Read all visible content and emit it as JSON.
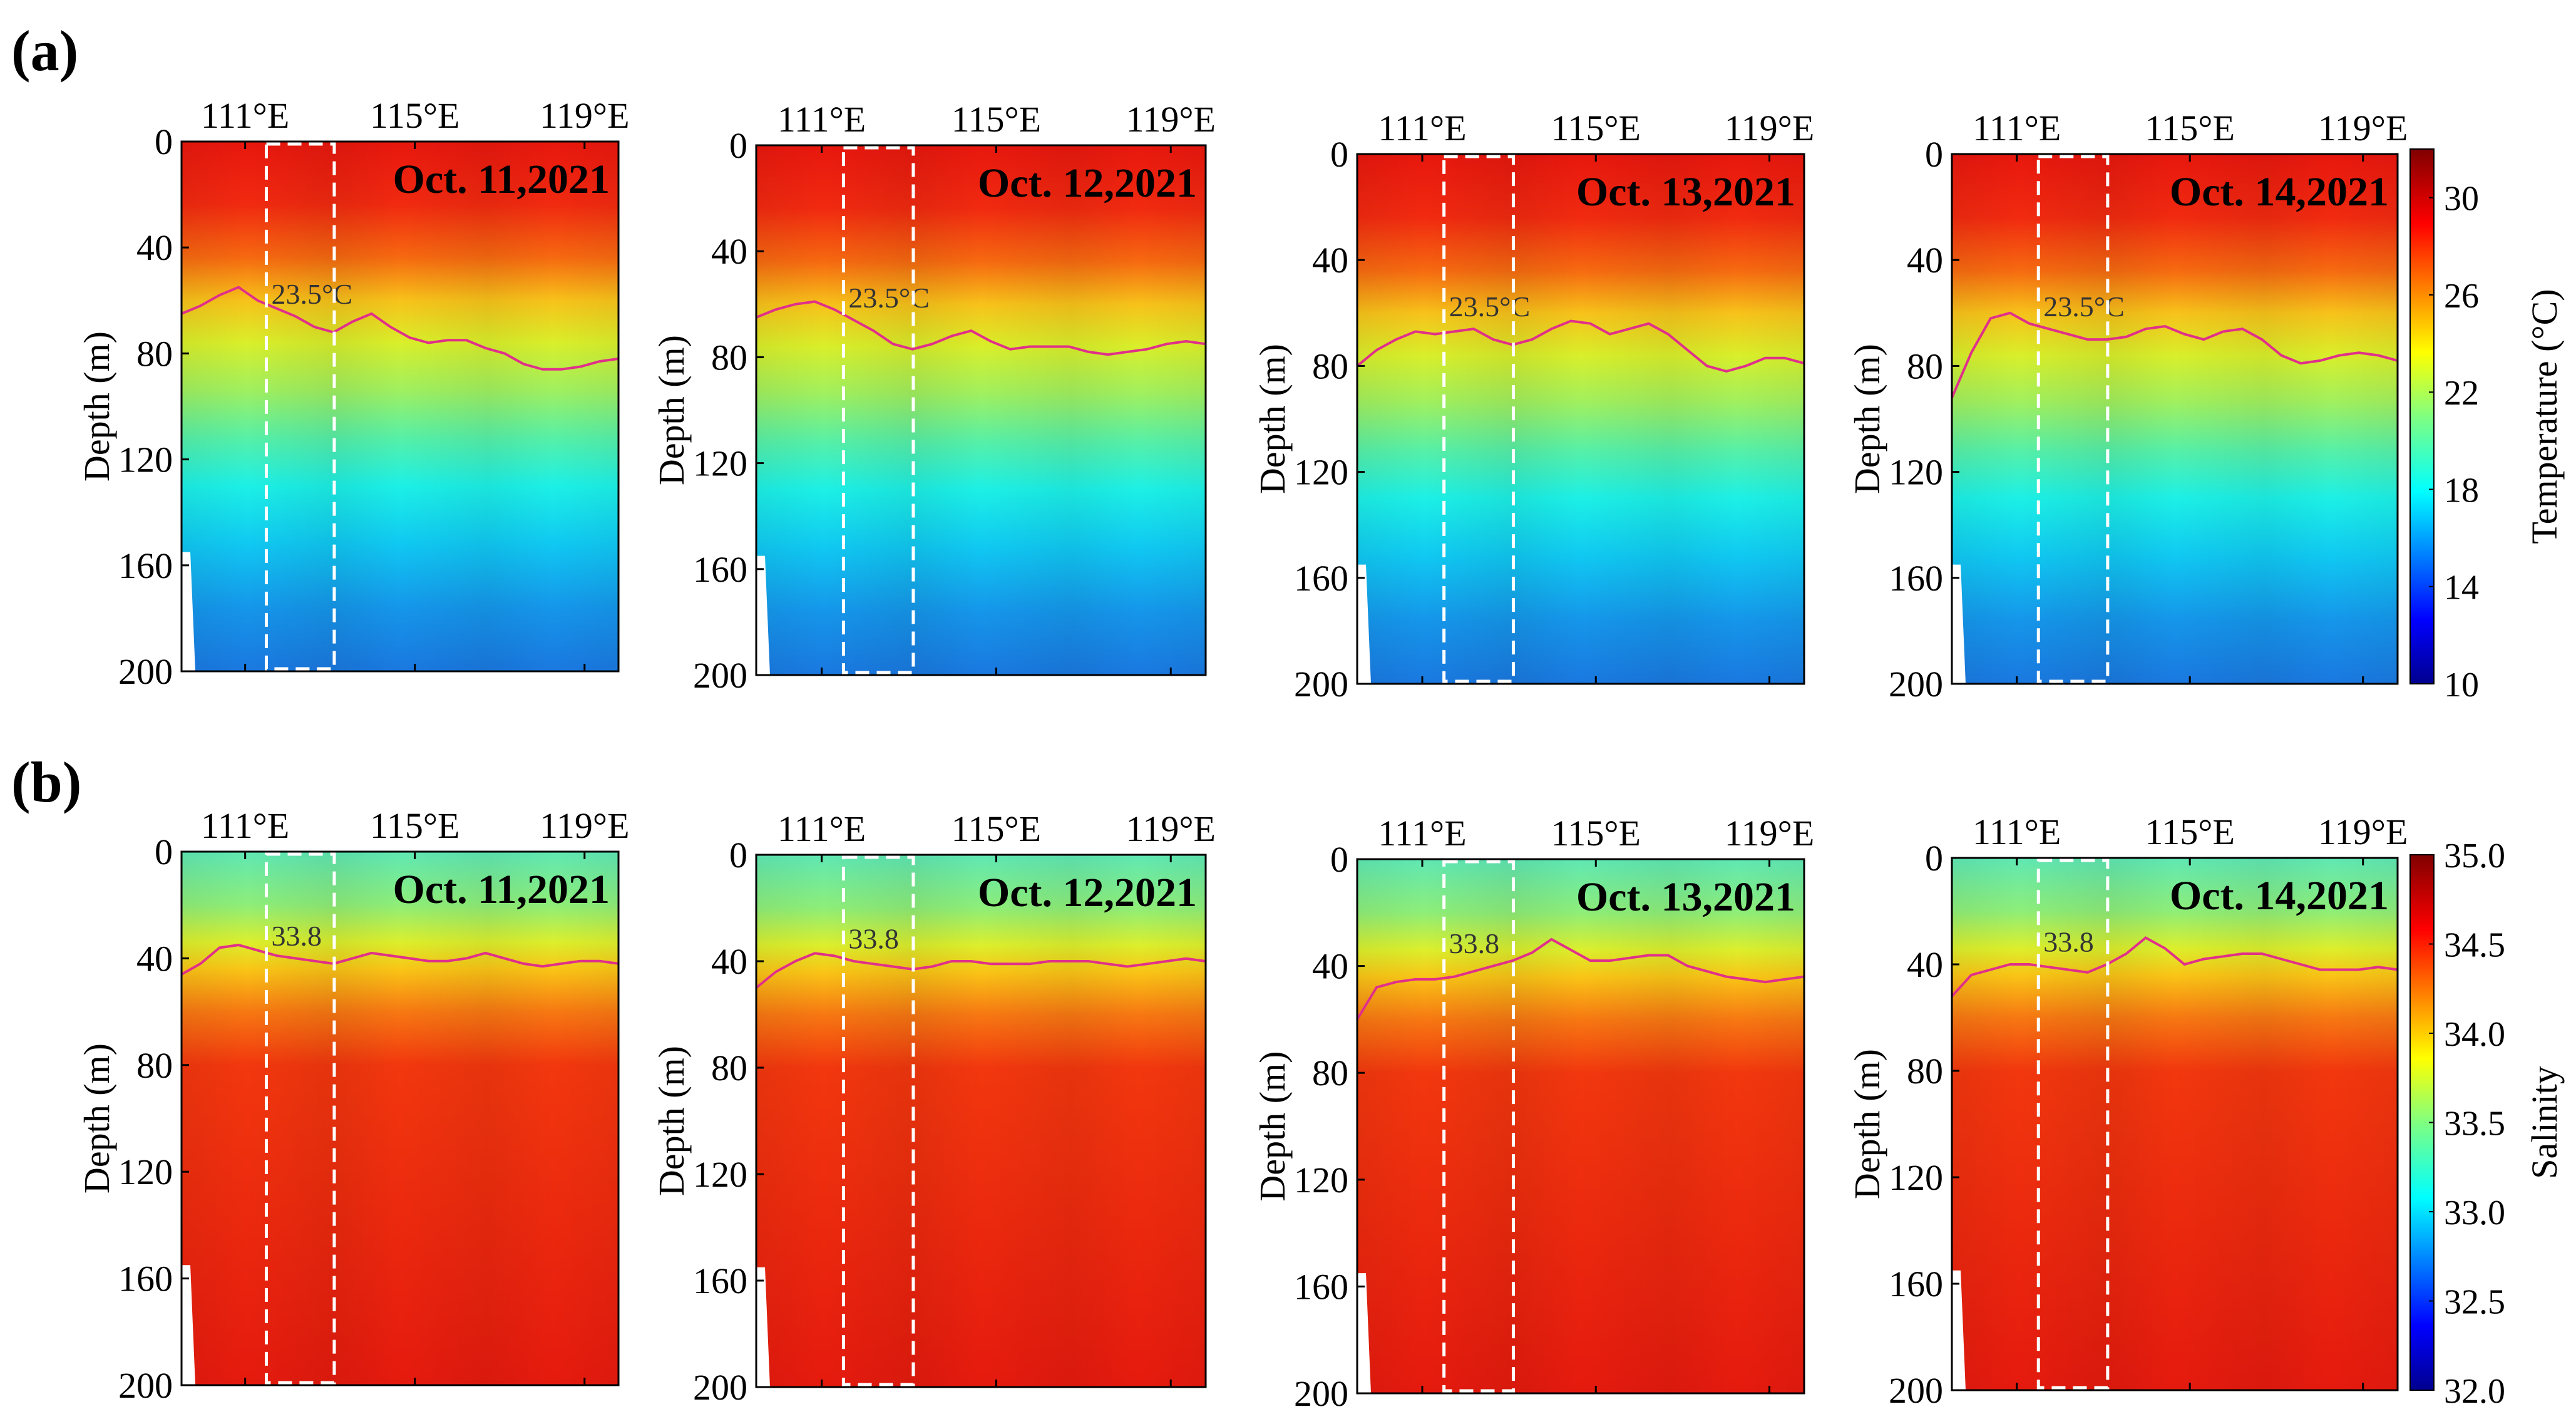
{
  "panel_labels": {
    "a": "(a)",
    "b": "(b)"
  },
  "chart_data": [
    {
      "type": "heatmap",
      "row": "a",
      "variable": "Temperature",
      "colorbar": {
        "title": "Temperature (°C)",
        "ticks": [
          "10",
          "14",
          "18",
          "22",
          "26",
          "30"
        ],
        "range": [
          10,
          32
        ]
      },
      "ylabel": "Depth (m)",
      "yticks": [
        "0",
        "40",
        "80",
        "120",
        "160",
        "200"
      ],
      "ylim": [
        0,
        200
      ],
      "xticks": [
        "111°E",
        "115°E",
        "119°E"
      ],
      "xlim": [
        109.5,
        119.8
      ],
      "box_lon": [
        111.5,
        113.1
      ],
      "contour_value": "23.5",
      "panels": [
        {
          "date": "Oct. 11,2021",
          "contour_label": "23.5°C",
          "contour_depth": [
            65,
            62,
            58,
            55,
            60,
            63,
            66,
            70,
            72,
            68,
            65,
            70,
            74,
            76,
            75,
            75,
            78,
            80,
            84,
            86,
            86,
            85,
            83,
            82
          ]
        },
        {
          "date": "Oct. 12,2021",
          "contour_label": "23.5°C",
          "contour_depth": [
            65,
            62,
            60,
            59,
            62,
            66,
            70,
            75,
            77,
            75,
            72,
            70,
            74,
            77,
            76,
            76,
            76,
            78,
            79,
            78,
            77,
            75,
            74,
            75
          ]
        },
        {
          "date": "Oct. 13,2021",
          "contour_label": "23.5°C",
          "contour_depth": [
            80,
            74,
            70,
            67,
            68,
            67,
            66,
            70,
            72,
            70,
            66,
            63,
            64,
            68,
            66,
            64,
            68,
            74,
            80,
            82,
            80,
            77,
            77,
            79
          ]
        },
        {
          "date": "Oct. 14,2021",
          "contour_label": "23.5°C",
          "contour_depth": [
            92,
            75,
            62,
            60,
            64,
            66,
            68,
            70,
            70,
            69,
            66,
            65,
            68,
            70,
            67,
            66,
            70,
            76,
            79,
            78,
            76,
            75,
            76,
            78
          ]
        }
      ]
    },
    {
      "type": "heatmap",
      "row": "b",
      "variable": "Salinity",
      "colorbar": {
        "title": "Salinity",
        "ticks": [
          "32.0",
          "32.5",
          "33.0",
          "33.5",
          "34.0",
          "34.5",
          "35.0"
        ],
        "range": [
          32.0,
          35.0
        ]
      },
      "ylabel": "Depth (m)",
      "yticks": [
        "0",
        "40",
        "80",
        "120",
        "160",
        "200"
      ],
      "ylim": [
        0,
        200
      ],
      "xticks": [
        "111°E",
        "115°E",
        "119°E"
      ],
      "xlim": [
        109.5,
        119.8
      ],
      "box_lon": [
        111.5,
        113.1
      ],
      "contour_value": "33.8",
      "panels": [
        {
          "date": "Oct. 11,2021",
          "contour_label": "33.8",
          "contour_depth": [
            46,
            42,
            36,
            35,
            37,
            39,
            40,
            41,
            42,
            40,
            38,
            39,
            40,
            41,
            41,
            40,
            38,
            40,
            42,
            43,
            42,
            41,
            41,
            42
          ]
        },
        {
          "date": "Oct. 12,2021",
          "contour_label": "33.8",
          "contour_depth": [
            50,
            44,
            40,
            37,
            38,
            40,
            41,
            42,
            43,
            42,
            40,
            40,
            41,
            41,
            41,
            40,
            40,
            40,
            41,
            42,
            41,
            40,
            39,
            40
          ]
        },
        {
          "date": "Oct. 13,2021",
          "contour_label": "33.8",
          "contour_depth": [
            60,
            48,
            46,
            45,
            45,
            44,
            42,
            40,
            38,
            35,
            30,
            34,
            38,
            38,
            37,
            36,
            36,
            40,
            42,
            44,
            45,
            46,
            45,
            44
          ]
        },
        {
          "date": "Oct. 14,2021",
          "contour_label": "33.8",
          "contour_depth": [
            52,
            44,
            42,
            40,
            40,
            41,
            42,
            43,
            40,
            36,
            30,
            34,
            40,
            38,
            37,
            36,
            36,
            38,
            40,
            42,
            42,
            42,
            41,
            42
          ]
        }
      ]
    }
  ]
}
